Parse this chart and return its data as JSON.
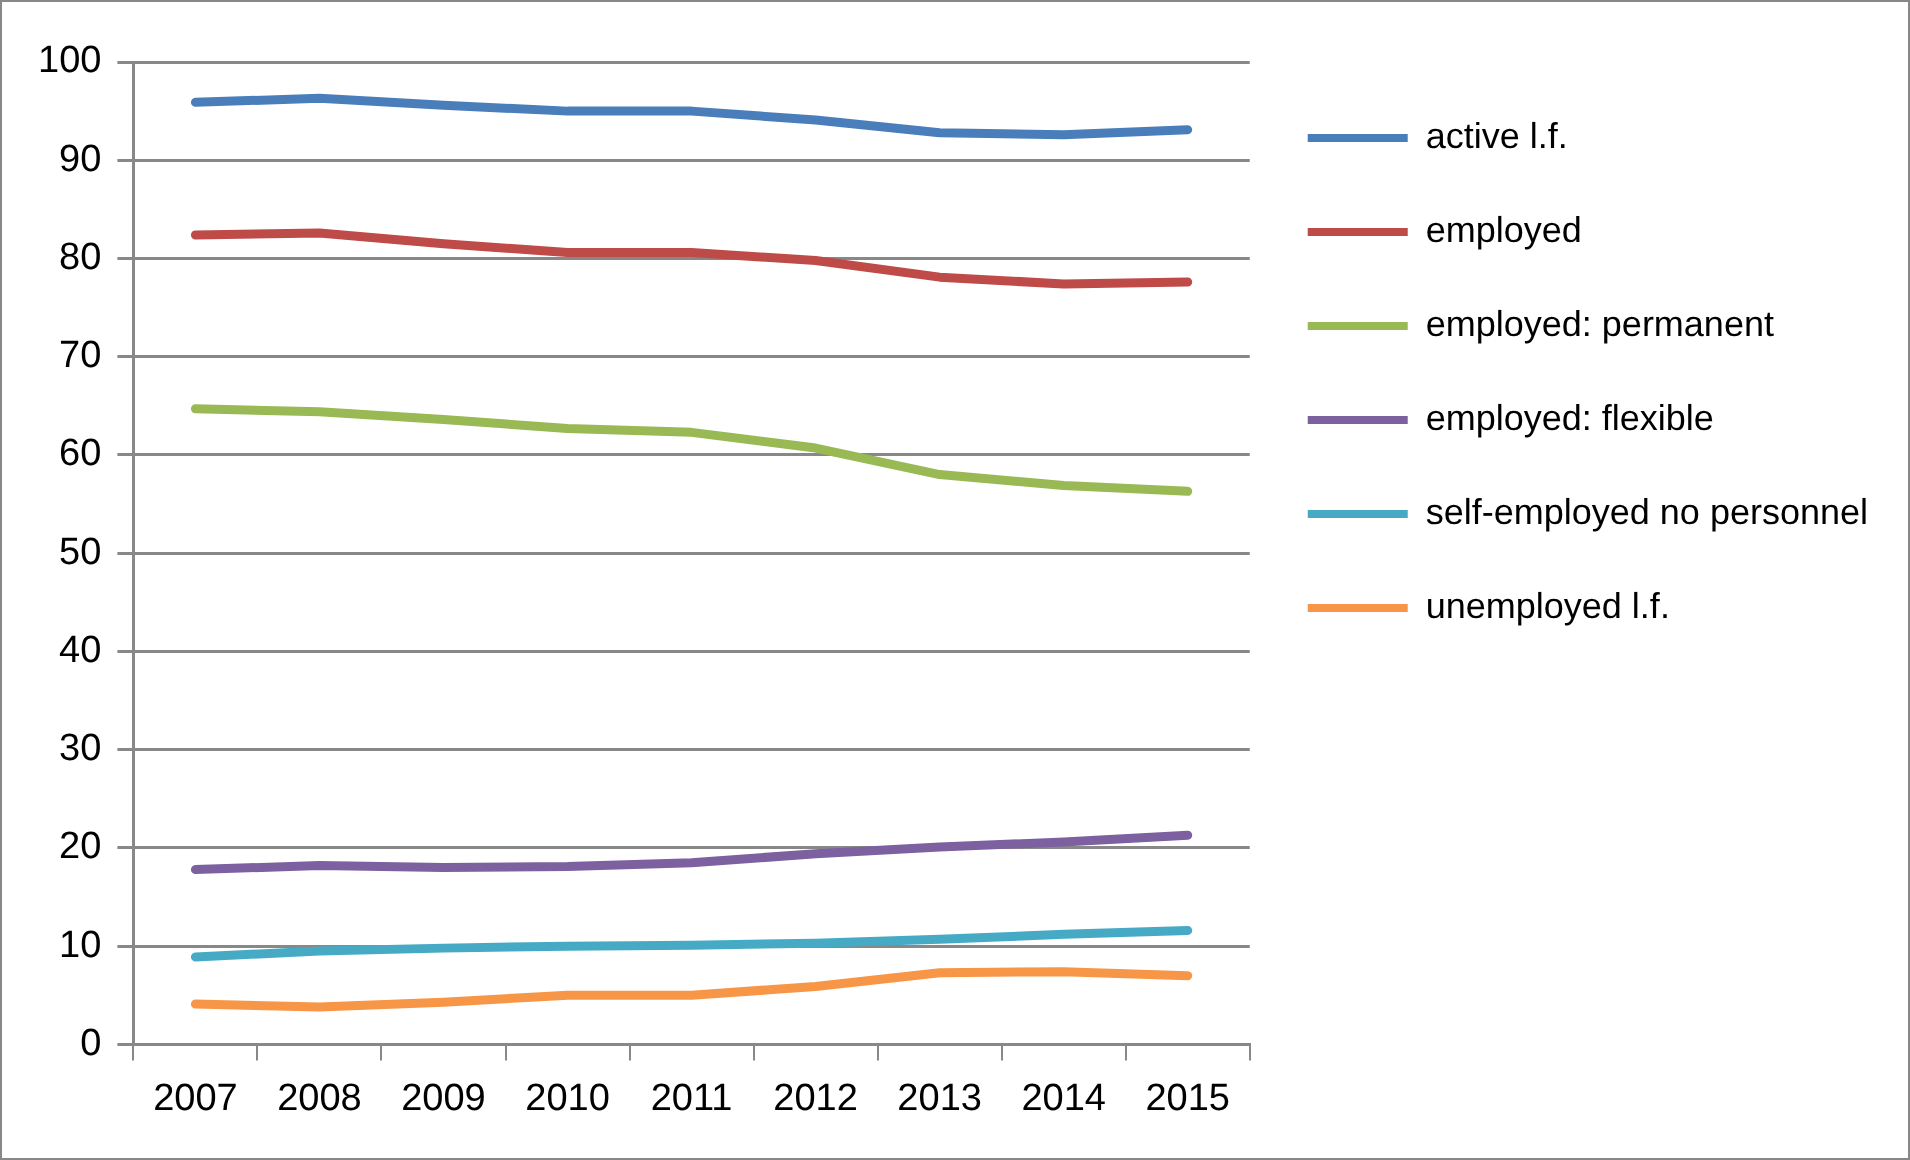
{
  "chart_data": {
    "type": "line",
    "categories": [
      "2007",
      "2008",
      "2009",
      "2010",
      "2011",
      "2012",
      "2013",
      "2014",
      "2015"
    ],
    "series": [
      {
        "name": "active l.f.",
        "color": "#4a7ebb",
        "values": [
          95.9,
          96.3,
          95.6,
          95.0,
          95.0,
          94.1,
          92.8,
          92.6,
          93.1
        ]
      },
      {
        "name": "employed",
        "color": "#be4b48",
        "values": [
          82.4,
          82.6,
          81.5,
          80.6,
          80.6,
          79.8,
          78.1,
          77.4,
          77.6
        ]
      },
      {
        "name": "employed: permanent",
        "color": "#98b954",
        "values": [
          64.7,
          64.4,
          63.6,
          62.7,
          62.3,
          60.7,
          58.0,
          56.9,
          56.3
        ]
      },
      {
        "name": "employed: flexible",
        "color": "#7d60a0",
        "values": [
          17.8,
          18.2,
          18.0,
          18.1,
          18.5,
          19.4,
          20.1,
          20.6,
          21.3
        ]
      },
      {
        "name": "self-employed no personnel",
        "color": "#46aac5",
        "values": [
          8.9,
          9.5,
          9.8,
          10.0,
          10.1,
          10.3,
          10.7,
          11.2,
          11.6
        ]
      },
      {
        "name": "unemployed l.f.",
        "color": "#f79646",
        "values": [
          4.1,
          3.8,
          4.3,
          5.0,
          5.0,
          5.9,
          7.3,
          7.4,
          7.0
        ]
      }
    ],
    "ylim": [
      0,
      100
    ],
    "yticks": [
      0,
      10,
      20,
      30,
      40,
      50,
      60,
      70,
      80,
      90,
      100
    ],
    "grid": "y",
    "legend": "right",
    "marker": "none",
    "line_style": "solid"
  }
}
